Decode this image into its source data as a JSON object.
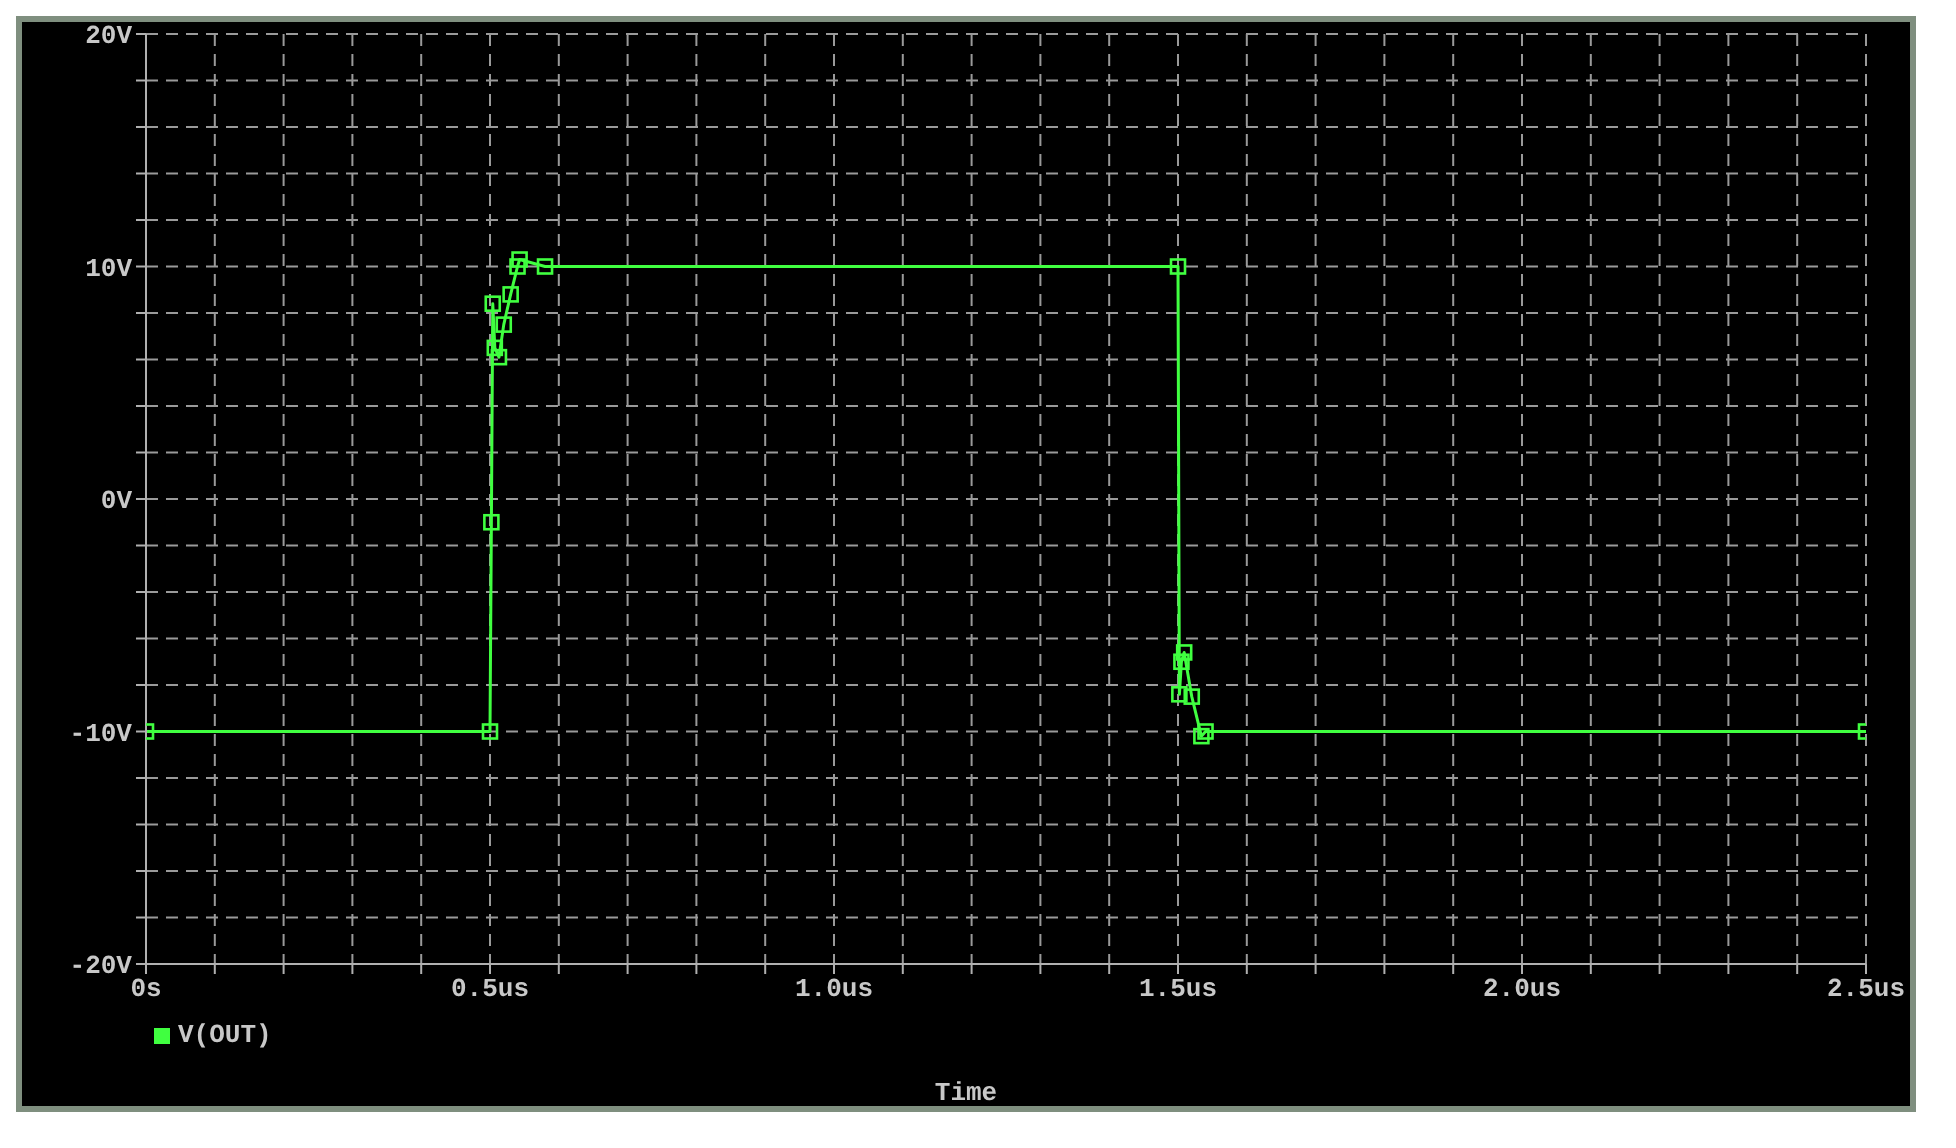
{
  "chart_data": {
    "type": "line",
    "xlabel": "Time",
    "x": [
      0,
      0.5,
      0.502,
      0.504,
      0.507,
      0.513,
      0.52,
      0.53,
      0.54,
      0.543,
      0.58,
      1.5,
      1.502,
      1.505,
      1.509,
      1.52,
      1.534,
      1.54,
      2.5
    ],
    "series": [
      {
        "name": "V(OUT)",
        "color": "#40ff40",
        "values": [
          -10,
          -10,
          -1,
          8.4,
          6.5,
          6.1,
          7.5,
          8.8,
          10,
          10.3,
          10,
          10,
          -8.4,
          -7,
          -6.6,
          -8.5,
          -10.2,
          -10,
          -10
        ]
      }
    ],
    "xlim": [
      0,
      2.5
    ],
    "xticks": [
      {
        "value": 0,
        "label": "0s"
      },
      {
        "value": 0.1,
        "label": null
      },
      {
        "value": 0.2,
        "label": null
      },
      {
        "value": 0.3,
        "label": null
      },
      {
        "value": 0.4,
        "label": null
      },
      {
        "value": 0.5,
        "label": "0.5us"
      },
      {
        "value": 0.6,
        "label": null
      },
      {
        "value": 0.7,
        "label": null
      },
      {
        "value": 0.8,
        "label": null
      },
      {
        "value": 0.9,
        "label": null
      },
      {
        "value": 1.0,
        "label": "1.0us"
      },
      {
        "value": 1.1,
        "label": null
      },
      {
        "value": 1.2,
        "label": null
      },
      {
        "value": 1.3,
        "label": null
      },
      {
        "value": 1.4,
        "label": null
      },
      {
        "value": 1.5,
        "label": "1.5us"
      },
      {
        "value": 1.6,
        "label": null
      },
      {
        "value": 1.7,
        "label": null
      },
      {
        "value": 1.8,
        "label": null
      },
      {
        "value": 1.9,
        "label": null
      },
      {
        "value": 2.0,
        "label": "2.0us"
      },
      {
        "value": 2.1,
        "label": null
      },
      {
        "value": 2.2,
        "label": null
      },
      {
        "value": 2.3,
        "label": null
      },
      {
        "value": 2.4,
        "label": null
      },
      {
        "value": 2.5,
        "label": "2.5us"
      }
    ],
    "ylim": [
      -20,
      20
    ],
    "yticks": [
      {
        "value": -20,
        "label": "-20V"
      },
      {
        "value": -18,
        "label": null
      },
      {
        "value": -16,
        "label": null
      },
      {
        "value": -14,
        "label": null
      },
      {
        "value": -12,
        "label": null
      },
      {
        "value": -10,
        "label": "-10V"
      },
      {
        "value": -8,
        "label": null
      },
      {
        "value": -6,
        "label": null
      },
      {
        "value": -4,
        "label": null
      },
      {
        "value": -2,
        "label": null
      },
      {
        "value": 0,
        "label": "0V"
      },
      {
        "value": 2,
        "label": null
      },
      {
        "value": 4,
        "label": null
      },
      {
        "value": 6,
        "label": null
      },
      {
        "value": 8,
        "label": null
      },
      {
        "value": 10,
        "label": "10V"
      },
      {
        "value": 12,
        "label": null
      },
      {
        "value": 14,
        "label": null
      },
      {
        "value": 16,
        "label": null
      },
      {
        "value": 18,
        "label": null
      },
      {
        "value": 20,
        "label": "20V"
      }
    ],
    "grid": true,
    "legend": "bottom left",
    "marker": "square",
    "line_style": "solid"
  }
}
